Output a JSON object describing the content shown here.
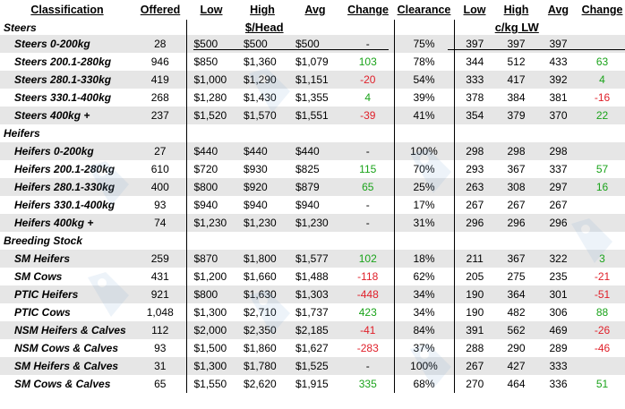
{
  "headers": [
    "Classification",
    "Offered",
    "Low",
    "High",
    "Avg",
    "Change",
    "Clearance",
    "Low",
    "High",
    "Avg",
    "Change"
  ],
  "units": {
    "head": "$/Head",
    "lw": "c/kg LW"
  },
  "sections": [
    {
      "title": "Steers",
      "rows": [
        {
          "label": "Steers 0-200kg",
          "offered": "28",
          "low": "$500",
          "high": "$500",
          "avg": "$500",
          "change": "-",
          "clearance": "75%",
          "lw_low": "397",
          "lw_high": "397",
          "lw_avg": "397",
          "lw_change": ""
        },
        {
          "label": "Steers 200.1-280kg",
          "offered": "946",
          "low": "$850",
          "high": "$1,360",
          "avg": "$1,079",
          "change": "103",
          "clearance": "78%",
          "lw_low": "344",
          "lw_high": "512",
          "lw_avg": "433",
          "lw_change": "63"
        },
        {
          "label": "Steers 280.1-330kg",
          "offered": "419",
          "low": "$1,000",
          "high": "$1,290",
          "avg": "$1,151",
          "change": "-20",
          "clearance": "54%",
          "lw_low": "333",
          "lw_high": "417",
          "lw_avg": "392",
          "lw_change": "4"
        },
        {
          "label": "Steers 330.1-400kg",
          "offered": "268",
          "low": "$1,280",
          "high": "$1,430",
          "avg": "$1,355",
          "change": "4",
          "clearance": "39%",
          "lw_low": "378",
          "lw_high": "384",
          "lw_avg": "381",
          "lw_change": "-16"
        },
        {
          "label": "Steers 400kg +",
          "offered": "237",
          "low": "$1,520",
          "high": "$1,570",
          "avg": "$1,551",
          "change": "-39",
          "clearance": "41%",
          "lw_low": "354",
          "lw_high": "379",
          "lw_avg": "370",
          "lw_change": "22"
        }
      ]
    },
    {
      "title": "Heifers",
      "rows": [
        {
          "label": "Heifers 0-200kg",
          "offered": "27",
          "low": "$440",
          "high": "$440",
          "avg": "$440",
          "change": "-",
          "clearance": "100%",
          "lw_low": "298",
          "lw_high": "298",
          "lw_avg": "298",
          "lw_change": ""
        },
        {
          "label": "Heifers 200.1-280kg",
          "offered": "610",
          "low": "$720",
          "high": "$930",
          "avg": "$825",
          "change": "115",
          "clearance": "70%",
          "lw_low": "293",
          "lw_high": "367",
          "lw_avg": "337",
          "lw_change": "57"
        },
        {
          "label": "Heifers 280.1-330kg",
          "offered": "400",
          "low": "$800",
          "high": "$920",
          "avg": "$879",
          "change": "65",
          "clearance": "25%",
          "lw_low": "263",
          "lw_high": "308",
          "lw_avg": "297",
          "lw_change": "16"
        },
        {
          "label": "Heifers 330.1-400kg",
          "offered": "93",
          "low": "$940",
          "high": "$940",
          "avg": "$940",
          "change": "-",
          "clearance": "17%",
          "lw_low": "267",
          "lw_high": "267",
          "lw_avg": "267",
          "lw_change": ""
        },
        {
          "label": "Heifers 400kg +",
          "offered": "74",
          "low": "$1,230",
          "high": "$1,230",
          "avg": "$1,230",
          "change": "-",
          "clearance": "31%",
          "lw_low": "296",
          "lw_high": "296",
          "lw_avg": "296",
          "lw_change": ""
        }
      ]
    },
    {
      "title": "Breeding Stock",
      "rows": [
        {
          "label": "SM Heifers",
          "offered": "259",
          "low": "$870",
          "high": "$1,800",
          "avg": "$1,577",
          "change": "102",
          "clearance": "18%",
          "lw_low": "211",
          "lw_high": "367",
          "lw_avg": "322",
          "lw_change": "3"
        },
        {
          "label": "SM Cows",
          "offered": "431",
          "low": "$1,200",
          "high": "$1,660",
          "avg": "$1,488",
          "change": "-118",
          "clearance": "62%",
          "lw_low": "205",
          "lw_high": "275",
          "lw_avg": "235",
          "lw_change": "-21"
        },
        {
          "label": "PTIC Heifers",
          "offered": "921",
          "low": "$800",
          "high": "$1,630",
          "avg": "$1,303",
          "change": "-448",
          "clearance": "34%",
          "lw_low": "190",
          "lw_high": "364",
          "lw_avg": "301",
          "lw_change": "-51"
        },
        {
          "label": "PTIC Cows",
          "offered": "1,048",
          "low": "$1,300",
          "high": "$2,710",
          "avg": "$1,737",
          "change": "423",
          "clearance": "34%",
          "lw_low": "190",
          "lw_high": "482",
          "lw_avg": "306",
          "lw_change": "88"
        },
        {
          "label": "NSM Heifers & Calves",
          "offered": "112",
          "low": "$2,000",
          "high": "$2,350",
          "avg": "$2,185",
          "change": "-41",
          "clearance": "84%",
          "lw_low": "391",
          "lw_high": "562",
          "lw_avg": "469",
          "lw_change": "-26"
        },
        {
          "label": "NSM Cows & Calves",
          "offered": "93",
          "low": "$1,500",
          "high": "$1,860",
          "avg": "$1,627",
          "change": "-283",
          "clearance": "37%",
          "lw_low": "288",
          "lw_high": "290",
          "lw_avg": "289",
          "lw_change": "-46"
        },
        {
          "label": "SM Heifers & Calves",
          "offered": "31",
          "low": "$1,300",
          "high": "$1,780",
          "avg": "$1,525",
          "change": "-",
          "clearance": "100%",
          "lw_low": "267",
          "lw_high": "427",
          "lw_avg": "333",
          "lw_change": ""
        },
        {
          "label": "SM Cows & Calves",
          "offered": "65",
          "low": "$1,550",
          "high": "$2,620",
          "avg": "$1,915",
          "change": "335",
          "clearance": "68%",
          "lw_low": "270",
          "lw_high": "464",
          "lw_avg": "336",
          "lw_change": "51"
        }
      ]
    }
  ],
  "colors": {
    "positive": "#1aa31a",
    "negative": "#e0202a",
    "stripe": "#e6e6e6",
    "watermark": "#7aa7d6"
  },
  "icons": {
    "watermark": "stylized-tag-logo-icon"
  }
}
